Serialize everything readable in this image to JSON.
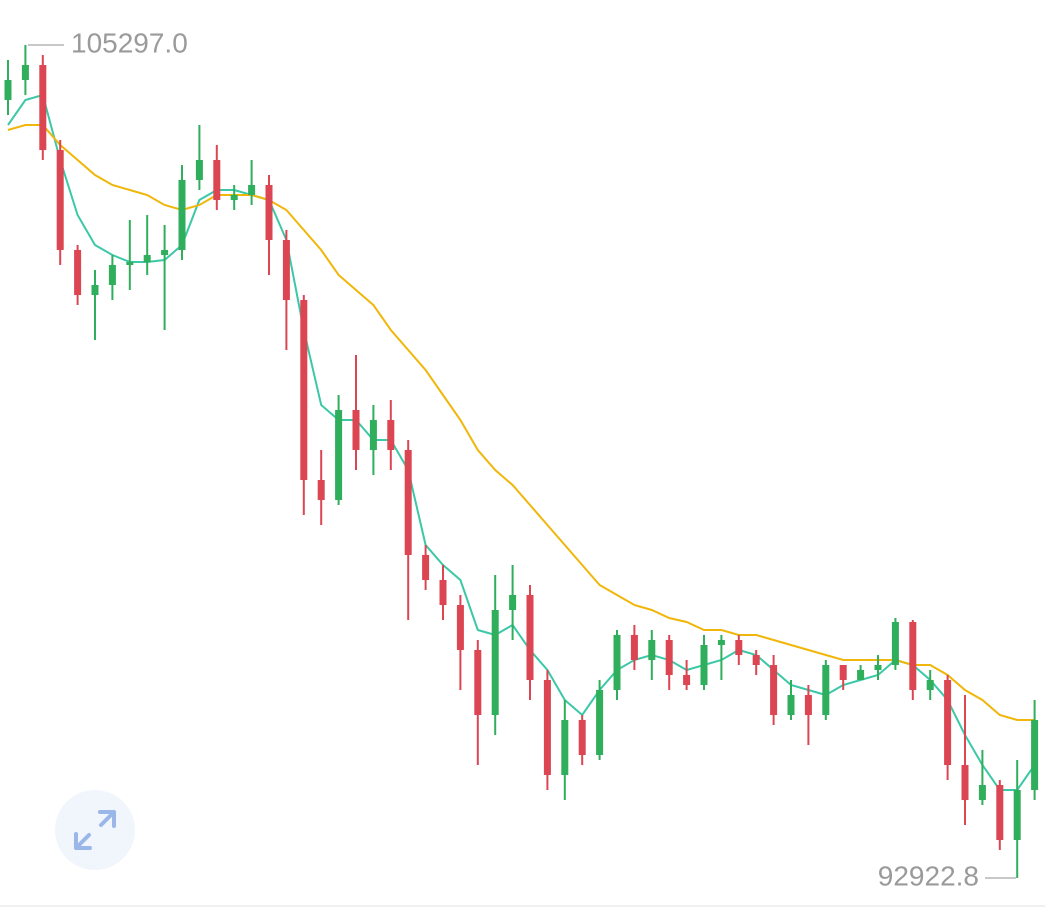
{
  "chart_data": {
    "type": "candlestick",
    "up_color": "#2fae5c",
    "down_color": "#dc4552",
    "open": [
      104480,
      104777,
      105000,
      103737,
      102252,
      101583,
      101732,
      102029,
      102073,
      102177,
      102252,
      103292,
      103589,
      102994,
      103069,
      103217,
      102400,
      101509,
      98835,
      98538,
      99875,
      99281,
      99726,
      99281,
      97721,
      97350,
      96978,
      96310,
      95344,
      96904,
      97127,
      95864,
      94453,
      95270,
      94750,
      95716,
      96533,
      96161,
      96458,
      95938,
      95790,
      96384,
      96458,
      96235,
      96087,
      95344,
      95641,
      95344,
      96087,
      95864,
      96013,
      96087,
      96726,
      95716,
      95864,
      94601,
      94081,
      94304,
      93487,
      94230
    ],
    "high": [
      105074,
      105297,
      105148,
      103886,
      102326,
      101955,
      102177,
      102697,
      102772,
      102623,
      103514,
      104109,
      103811,
      103217,
      103589,
      103366,
      102549,
      101583,
      99281,
      100098,
      100692,
      99949,
      100023,
      99429,
      97869,
      97572,
      97127,
      96458,
      97424,
      97572,
      97275,
      96013,
      95567,
      95344,
      95864,
      96607,
      96681,
      96607,
      96533,
      96161,
      96533,
      96533,
      96533,
      96310,
      96235,
      95864,
      95790,
      96161,
      96087,
      96087,
      96235,
      96785,
      96755,
      96013,
      95938,
      95641,
      94824,
      94379,
      94676,
      95567
    ],
    "low": [
      104257,
      104554,
      103589,
      102029,
      101435,
      100915,
      101509,
      101658,
      101880,
      101063,
      102103,
      103143,
      102846,
      102846,
      102920,
      101880,
      100766,
      98315,
      98167,
      98464,
      98984,
      98909,
      98984,
      96755,
      97201,
      96755,
      95716,
      94601,
      95047,
      96458,
      95567,
      94230,
      94081,
      94601,
      94676,
      95567,
      96013,
      95864,
      95716,
      95716,
      95716,
      95864,
      96087,
      95938,
      95196,
      95270,
      94898,
      95270,
      95716,
      95864,
      95864,
      96013,
      95567,
      95567,
      94379,
      93710,
      94007,
      93339,
      92922.8,
      94081
    ],
    "close": [
      104777,
      105000,
      103737,
      102252,
      101583,
      101732,
      102029,
      102073,
      102177,
      102252,
      103292,
      103589,
      102994,
      103069,
      103217,
      102400,
      101509,
      98835,
      98538,
      99875,
      99281,
      99726,
      99281,
      97721,
      97350,
      96978,
      96310,
      95344,
      96904,
      97127,
      95864,
      94453,
      95270,
      94750,
      95716,
      96533,
      96161,
      96458,
      95938,
      95790,
      96384,
      96458,
      96235,
      96087,
      95344,
      95641,
      95344,
      96087,
      95864,
      96013,
      96087,
      96726,
      95716,
      95864,
      94601,
      94081,
      94304,
      93487,
      94230,
      95270
    ],
    "series": [
      {
        "color": "#3cc8a6",
        "values": [
          104109,
          104480,
          104554,
          103589,
          102772,
          102326,
          102177,
          102073,
          102073,
          102103,
          102326,
          102994,
          103143,
          103143,
          103069,
          102994,
          102400,
          101063,
          99949,
          99726,
          99726,
          99429,
          99429,
          98984,
          97869,
          97572,
          97350,
          96607,
          96533,
          96681,
          96310,
          96013,
          95567,
          95344,
          95716,
          96013,
          96161,
          96235,
          96161,
          96013,
          96087,
          96161,
          96310,
          96235,
          96013,
          95790,
          95716,
          95641,
          95790,
          95864,
          95938,
          96161,
          96087,
          95864,
          95567,
          95047,
          94601,
          94230,
          94230,
          94601
        ]
      },
      {
        "color": "#f0b609",
        "values": [
          104034,
          104109,
          104109,
          103811,
          103589,
          103366,
          103217,
          103143,
          103069,
          102920,
          102846,
          102920,
          103069,
          103069,
          103069,
          102994,
          102846,
          102549,
          102252,
          101880,
          101658,
          101435,
          101063,
          100766,
          100469,
          100098,
          99726,
          99281,
          98984,
          98761,
          98464,
          98167,
          97869,
          97572,
          97275,
          97127,
          96978,
          96904,
          96785,
          96726,
          96607,
          96607,
          96533,
          96533,
          96458,
          96384,
          96310,
          96235,
          96161,
          96161,
          96161,
          96161,
          96087,
          96087,
          95938,
          95716,
          95567,
          95344,
          95270,
          95270
        ]
      }
    ],
    "ylim": [
      92328.6,
      105965.5
    ],
    "high_marker": {
      "value": 105297.0,
      "label": "105297.0"
    },
    "low_marker": {
      "value": 92922.8,
      "label": "92922.8"
    }
  }
}
